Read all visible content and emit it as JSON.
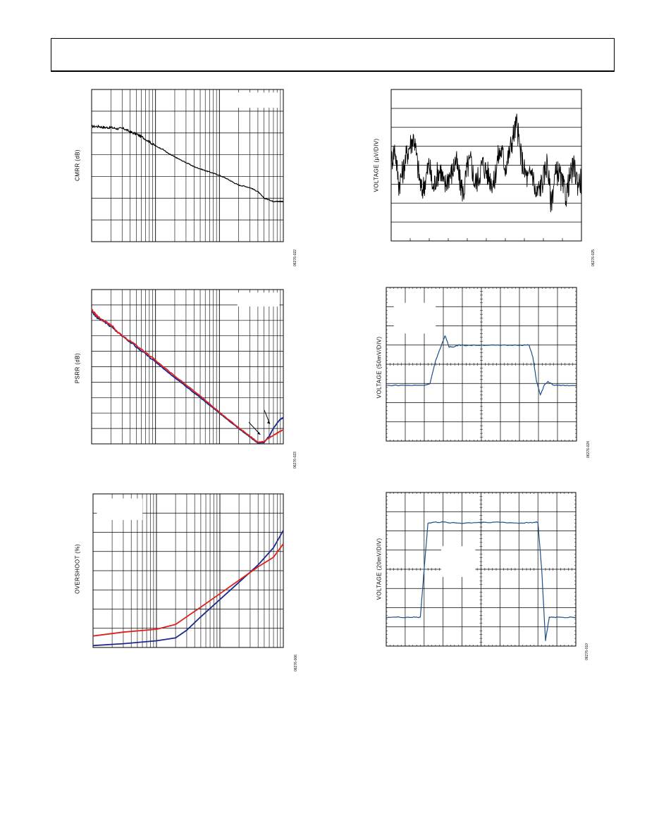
{
  "page": {
    "header_text": ""
  },
  "charts": [
    {
      "id": "cmrr",
      "chart_data": {
        "type": "line",
        "title": "",
        "xlabel": "",
        "ylabel": "CMRR (dB)",
        "x_scale": "log",
        "xlim": [
          1,
          1000
        ],
        "ylim": [
          0,
          7
        ],
        "grid": true,
        "legend": "none",
        "series": [
          {
            "color": "#000000",
            "x": [
              1,
              1.3,
              1.6,
              2,
              2.5,
              3.2,
              4,
              5,
              6.3,
              8,
              10,
              13,
              16,
              20,
              25,
              32,
              40,
              50,
              63,
              80,
              100,
              130,
              160,
              200,
              250,
              320,
              400,
              500,
              630,
              700,
              800,
              900,
              1000
            ],
            "y": [
              5.3,
              5.3,
              5.25,
              5.25,
              5.2,
              5.2,
              5.05,
              4.95,
              4.8,
              4.6,
              4.4,
              4.25,
              4.05,
              3.9,
              3.75,
              3.6,
              3.45,
              3.35,
              3.25,
              3.15,
              3.05,
              2.9,
              2.75,
              2.6,
              2.55,
              2.45,
              2.3,
              2.0,
              1.9,
              1.85,
              1.85,
              1.85,
              1.85
            ]
          }
        ]
      },
      "doc_code": "06276-022"
    },
    {
      "id": "noise",
      "chart_data": {
        "type": "line",
        "title": "",
        "xlabel": "",
        "ylabel": "VOLTAGE (µV/DIV)",
        "xlim": [
          0,
          10
        ],
        "ylim": [
          -3,
          5
        ],
        "grid": true,
        "legend": "none",
        "series": [
          {
            "color": "#000000",
            "x": [
              0,
              0.2,
              0.4,
              0.6,
              0.8,
              1.0,
              1.2,
              1.4,
              1.6,
              1.8,
              2.0,
              2.2,
              2.4,
              2.6,
              2.8,
              3.0,
              3.2,
              3.4,
              3.6,
              3.8,
              4.0,
              4.2,
              4.4,
              4.6,
              4.8,
              5.0,
              5.2,
              5.4,
              5.6,
              5.8,
              6.0,
              6.2,
              6.4,
              6.6,
              6.8,
              7.0,
              7.2,
              7.4,
              7.6,
              7.8,
              8.0,
              8.2,
              8.4,
              8.6,
              8.8,
              9.0,
              9.2,
              9.4,
              9.6,
              9.8,
              10.0
            ],
            "y": [
              1.2,
              1.9,
              0.0,
              0.6,
              1.5,
              2.1,
              2.5,
              0.9,
              -0.4,
              0.2,
              1.1,
              -0.3,
              0.5,
              0.8,
              -0.2,
              0.4,
              0.6,
              1.3,
              0.2,
              -0.5,
              0.9,
              1.2,
              0.0,
              0.4,
              1.1,
              0.7,
              0.3,
              0.0,
              1.4,
              1.8,
              0.9,
              1.6,
              2.5,
              3.2,
              1.6,
              0.7,
              0.2,
              0.8,
              -0.6,
              -0.2,
              0.3,
              1.2,
              -1.0,
              0.4,
              0.7,
              -0.1,
              -0.6,
              0.4,
              0.9,
              0.1,
              0.2
            ]
          }
        ]
      },
      "doc_code": "06276-025"
    },
    {
      "id": "psrr",
      "chart_data": {
        "type": "line",
        "title": "",
        "xlabel": "",
        "ylabel": "PSRR (dB)",
        "x_scale": "log",
        "xlim": [
          1,
          1000
        ],
        "ylim": [
          0,
          10
        ],
        "grid": true,
        "legend": "none",
        "series": [
          {
            "color": "#1a2a8c",
            "x": [
              1,
              1.2,
              1.5,
              2,
              3,
              5,
              10,
              20,
              50,
              100,
              200,
              300,
              400,
              500,
              600,
              700,
              800,
              900,
              1000
            ],
            "y": [
              8.6,
              8.2,
              8.0,
              7.6,
              7.0,
              6.3,
              5.3,
              4.3,
              3.0,
              2.0,
              1.0,
              0.45,
              0.05,
              0.1,
              0.5,
              1.0,
              1.35,
              1.6,
              1.7
            ]
          },
          {
            "color": "#e0201c",
            "x": [
              1,
              1.2,
              1.5,
              2,
              3,
              5,
              10,
              20,
              50,
              100,
              200,
              300,
              400,
              500,
              600,
              700,
              800,
              900,
              1000
            ],
            "y": [
              8.7,
              8.3,
              8.0,
              7.7,
              7.0,
              6.4,
              5.4,
              4.4,
              3.1,
              2.05,
              1.05,
              0.5,
              0.1,
              0.15,
              0.4,
              0.55,
              0.7,
              0.82,
              0.9
            ]
          }
        ],
        "annotations": 2
      },
      "doc_code": "06276-023"
    },
    {
      "id": "pulse50",
      "chart_data": {
        "type": "line",
        "title": "",
        "xlabel": "",
        "ylabel": "VOLTAGE (50mV/DIV)",
        "xlim": [
          0,
          10
        ],
        "ylim": [
          -4,
          4
        ],
        "grid": true,
        "legend": "none",
        "series": [
          {
            "color": "#1f4e8c",
            "x": [
              0,
              1,
              2,
              2.3,
              2.6,
              2.9,
              3.1,
              3.3,
              3.5,
              3.8,
              4.2,
              5,
              6,
              7,
              7.5,
              7.7,
              7.9,
              8.1,
              8.3,
              8.5,
              8.8,
              9.2,
              10
            ],
            "y": [
              -1.1,
              -1.1,
              -1.1,
              -1.0,
              0.2,
              1.0,
              1.5,
              0.9,
              0.9,
              1.0,
              0.98,
              1.0,
              0.98,
              1.0,
              1.0,
              0.4,
              -0.9,
              -1.6,
              -1.1,
              -0.9,
              -1.1,
              -1.1,
              -1.1
            ]
          }
        ]
      },
      "doc_code": "06276-024"
    },
    {
      "id": "overshoot",
      "chart_data": {
        "type": "line",
        "title": "",
        "xlabel": "",
        "ylabel": "OVERSHOOT (%)",
        "x_scale": "log",
        "xlim": [
          1,
          1000
        ],
        "ylim": [
          0,
          8
        ],
        "grid": true,
        "legend": "none",
        "series": [
          {
            "color": "#1a2a8c",
            "x": [
              1,
              3,
              10,
              20,
              30,
              50,
              100,
              200,
              400,
              700,
              1000
            ],
            "y": [
              0.1,
              0.2,
              0.35,
              0.5,
              0.9,
              1.6,
              2.5,
              3.4,
              4.3,
              5.2,
              6.1
            ]
          },
          {
            "color": "#e0201c",
            "x": [
              1,
              3,
              10,
              20,
              30,
              50,
              100,
              200,
              400,
              700,
              1000
            ],
            "y": [
              0.6,
              0.8,
              0.95,
              1.2,
              1.6,
              2.1,
              2.8,
              3.5,
              4.2,
              4.7,
              5.4
            ]
          }
        ]
      },
      "doc_code": "06276-006"
    },
    {
      "id": "pulse20",
      "chart_data": {
        "type": "line",
        "title": "",
        "xlabel": "",
        "ylabel": "VOLTAGE (20mV/DIV)",
        "xlim": [
          0,
          10
        ],
        "ylim": [
          -4,
          4
        ],
        "grid": true,
        "legend": "none",
        "series": [
          {
            "color": "#1f4e8c",
            "x": [
              0,
              1,
              1.6,
              1.8,
              2.0,
              2.2,
              2.5,
              3,
              4,
              5,
              6,
              7,
              7.8,
              8.0,
              8.2,
              8.4,
              8.6,
              8.9,
              9.2,
              10
            ],
            "y": [
              -2.5,
              -2.5,
              -2.5,
              -2.5,
              0.0,
              2.4,
              2.45,
              2.45,
              2.4,
              2.45,
              2.45,
              2.4,
              2.45,
              2.45,
              0.0,
              -3.7,
              -2.5,
              -2.5,
              -2.5,
              -2.5
            ]
          }
        ]
      },
      "doc_code": "06276-010"
    }
  ]
}
